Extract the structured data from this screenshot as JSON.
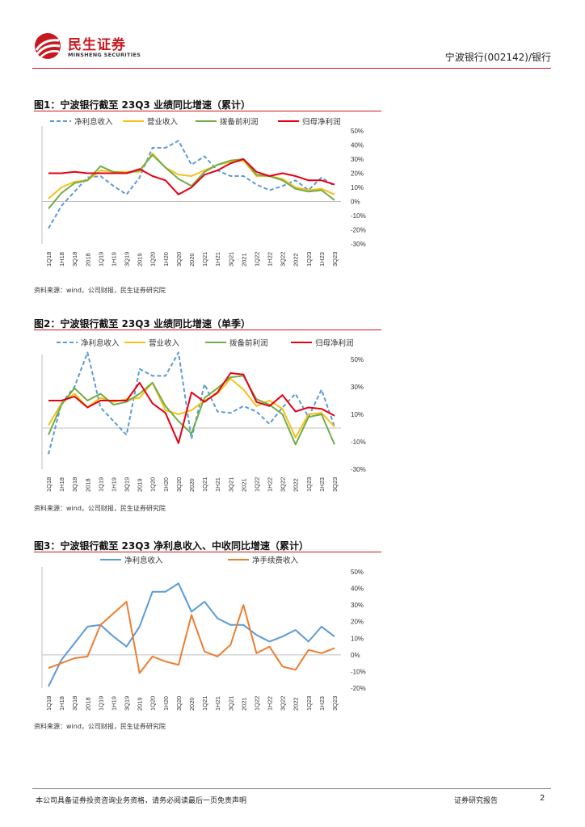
{
  "header": {
    "logo_cn": "民生证券",
    "logo_en": "MINSHENG SECURITIES",
    "right_text": "宁波银行(002142)/银行"
  },
  "figures": [
    {
      "title": "图1：宁波银行截至 23Q3 业绩同比增速（累计）",
      "source": "资料来源：wind，公司财报，民生证券研究院",
      "chart_data": {
        "type": "line",
        "x": [
          "1Q18",
          "1H18",
          "3Q18",
          "2018",
          "1Q19",
          "1H19",
          "3Q19",
          "2019",
          "1Q20",
          "1H20",
          "3Q20",
          "2020",
          "1Q21",
          "1H21",
          "3Q21",
          "2021",
          "1Q22",
          "1H22",
          "3Q22",
          "2022",
          "1Q23",
          "1H23",
          "3Q23"
        ],
        "xlabels": [
          "1Q18",
          "1H18",
          "3Q18",
          "2018",
          "1Q19",
          "1H19",
          "3Q19",
          "2019",
          "1Q20",
          "1H20",
          "3Q20",
          "2020",
          "1Q21",
          "1H21",
          "3Q21",
          "2021",
          "1Q22",
          "1H22",
          "3Q22",
          "2022",
          "1Q23",
          "1H23",
          "3Q23"
        ],
        "ylim": [
          -30,
          50
        ],
        "yticks": [
          -30,
          -20,
          -10,
          0,
          10,
          20,
          30,
          40,
          50
        ],
        "ytick_labels": [
          "-30%",
          "-20%",
          "-10%",
          "0%",
          "10%",
          "20%",
          "30%",
          "40%",
          "50%"
        ],
        "legend_position": "top",
        "series": [
          {
            "name": "净利息收入",
            "color": "#5b9bd5",
            "dash": true,
            "values": [
              -19,
              -3,
              7,
              17,
              18,
              11,
              5,
              17,
              38,
              38,
              43,
              26,
              32,
              22,
              18,
              18,
              12,
              8,
              11,
              15,
              8,
              17,
              11
            ]
          },
          {
            "name": "营业收入",
            "color": "#f5c018",
            "dash": false,
            "values": [
              2,
              10,
              14,
              15,
              22,
              21,
              21,
              21,
              34,
              24,
              19,
              18,
              22,
              26,
              28,
              29,
              18,
              18,
              16,
              10,
              8,
              9,
              5
            ]
          },
          {
            "name": "拨备前利润",
            "color": "#70ad47",
            "dash": false,
            "values": [
              -5,
              6,
              13,
              15,
              25,
              21,
              20,
              22,
              33,
              24,
              16,
              11,
              21,
              26,
              29,
              30,
              19,
              18,
              15,
              9,
              7,
              8,
              1
            ]
          },
          {
            "name": "归母净利润",
            "color": "#e60012",
            "dash": false,
            "values": [
              20,
              20,
              21,
              20,
              20,
              20,
              20,
              23,
              18,
              15,
              5,
              10,
              19,
              22,
              27,
              30,
              21,
              18,
              20,
              18,
              15,
              15,
              12
            ]
          }
        ]
      }
    },
    {
      "title": "图2：宁波银行截至 23Q3 业绩同比增速（单季）",
      "source": "资料来源：wind，公司财报，民生证券研究院",
      "chart_data": {
        "type": "line",
        "x": [
          "1Q18",
          "1H18",
          "3Q18",
          "2018",
          "1Q19",
          "1H19",
          "3Q19",
          "2019",
          "1Q20",
          "1H20",
          "3Q20",
          "2020",
          "1Q21",
          "1H21",
          "3Q21",
          "2021",
          "1Q22",
          "1H22",
          "3Q22",
          "2022",
          "1Q23",
          "1H23",
          "3Q23"
        ],
        "xlabels": [
          "1Q18",
          "1H18",
          "3Q18",
          "2018",
          "1Q19",
          "1H19",
          "3Q19",
          "2019",
          "1Q20",
          "1H20",
          "3Q20",
          "2020",
          "1Q21",
          "1H21",
          "3Q21",
          "2021",
          "1Q22",
          "1H22",
          "3Q22",
          "2022",
          "1Q23",
          "1H23",
          "3Q23"
        ],
        "ylim": [
          -30,
          50
        ],
        "yticks": [
          -30,
          -10,
          10,
          30,
          50
        ],
        "ytick_labels": [
          "-30%",
          "-10%",
          "10%",
          "30%",
          "50%"
        ],
        "legend_position": "top",
        "series": [
          {
            "name": "净利息收入",
            "color": "#5b9bd5",
            "dash": true,
            "values": [
              -19,
              18,
              30,
              55,
              15,
              5,
              -5,
              43,
              38,
              38,
              55,
              -8,
              32,
              12,
              11,
              16,
              12,
              3,
              15,
              25,
              8,
              28,
              1
            ]
          },
          {
            "name": "营业收入",
            "color": "#f5c018",
            "dash": false,
            "values": [
              2,
              18,
              25,
              15,
              22,
              19,
              21,
              22,
              33,
              13,
              10,
              13,
              20,
              25,
              36,
              28,
              16,
              20,
              14,
              -7,
              10,
              11,
              1
            ]
          },
          {
            "name": "拨备前利润",
            "color": "#70ad47",
            "dash": false,
            "values": [
              -5,
              17,
              29,
              20,
              25,
              17,
              19,
              25,
              33,
              16,
              5,
              -4,
              22,
              29,
              37,
              38,
              21,
              17,
              10,
              -12,
              8,
              10,
              -12
            ]
          },
          {
            "name": "归母净利润",
            "color": "#e60012",
            "dash": false,
            "values": [
              20,
              20,
              23,
              15,
              20,
              20,
              20,
              33,
              18,
              11,
              -11,
              26,
              19,
              26,
              40,
              39,
              19,
              16,
              24,
              12,
              15,
              14,
              9
            ]
          }
        ]
      }
    },
    {
      "title": "图3：宁波银行截至 23Q3 净利息收入、中收同比增速（累计）",
      "source": "资料来源：wind，公司财报，民生证券研究院",
      "chart_data": {
        "type": "line",
        "x": [
          "1Q18",
          "1H18",
          "3Q18",
          "2018",
          "1Q19",
          "1H19",
          "3Q19",
          "2019",
          "1Q20",
          "1H20",
          "3Q20",
          "2020",
          "1Q21",
          "1H21",
          "3Q21",
          "2021",
          "1Q22",
          "1H22",
          "3Q22",
          "2022",
          "1Q23",
          "1H23",
          "3Q23"
        ],
        "xlabels": [
          "1Q18",
          "1H18",
          "3Q18",
          "2018",
          "1Q19",
          "1H19",
          "3Q19",
          "2019",
          "1Q20",
          "1H20",
          "3Q20",
          "2020",
          "1Q21",
          "1H21",
          "3Q21",
          "2021",
          "1Q22",
          "1H22",
          "3Q22",
          "2022",
          "1Q23",
          "1H23",
          "3Q23"
        ],
        "ylim": [
          -20,
          50
        ],
        "yticks": [
          -20,
          -10,
          0,
          10,
          20,
          30,
          40,
          50
        ],
        "ytick_labels": [
          "-20%",
          "-10%",
          "0%",
          "10%",
          "20%",
          "30%",
          "40%",
          "50%"
        ],
        "legend_position": "top",
        "series": [
          {
            "name": "净利息收入",
            "color": "#5b9bd5",
            "dash": false,
            "values": [
              -19,
              -3,
              7,
              17,
              18,
              11,
              5,
              17,
              38,
              38,
              43,
              26,
              32,
              22,
              18,
              18,
              12,
              8,
              11,
              15,
              8,
              17,
              11
            ]
          },
          {
            "name": "净手续费收入",
            "color": "#ed7d31",
            "dash": false,
            "values": [
              -8,
              -5,
              -2,
              -1,
              18,
              25,
              32,
              -11,
              -1,
              -4,
              -6,
              24,
              2,
              -1,
              6,
              30,
              1,
              5,
              -7,
              -9,
              3,
              1,
              4
            ]
          }
        ]
      }
    }
  ],
  "footer": {
    "disclaimer": "本公司具备证券投资咨询业务资格，请务必阅读最后一页免责声明",
    "report_type": "证券研究报告",
    "page": "2"
  }
}
